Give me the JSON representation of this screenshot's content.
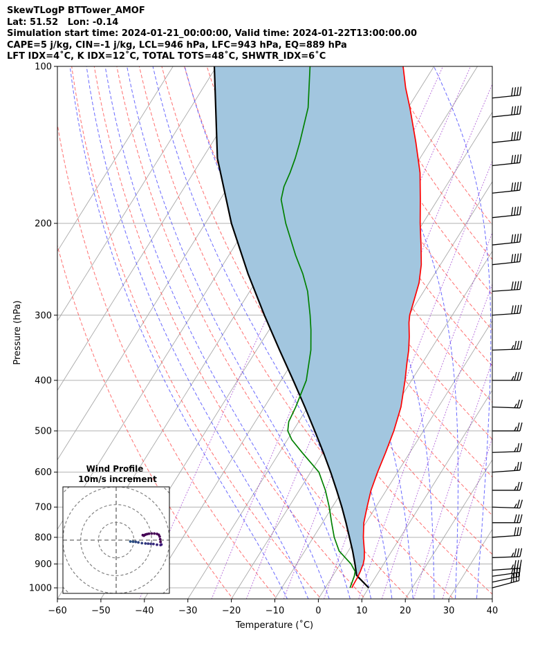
{
  "header": {
    "line1": "SkewTLogP BTTower_AMOF",
    "line2": "Lat: 51.52   Lon: -0.14",
    "line3": "Simulation start time: 2024-01-21_00:00:00, Valid time: 2024-01-22T13:00:00.00",
    "line4": "CAPE=5 j/kg, CIN=-1 j/kg, LCL=946 hPa, LFC=943 hPa, EQ=889 hPa",
    "line5": "LFT IDX=4˚C, K IDX=12˚C, TOTAL TOTS=48˚C, SHWTR_IDX=6˚C"
  },
  "chart_data": [
    {
      "type": "line",
      "chart": "skew-t log-p",
      "xlabel": "Temperature (˚C)",
      "ylabel": "Pressure (hPa)",
      "xlim": [
        -60,
        40
      ],
      "ylim": [
        1050,
        100
      ],
      "yscale": "log",
      "skew_deg_per_decade": 75,
      "x_ticks": [
        -60,
        -50,
        -40,
        -30,
        -20,
        -10,
        0,
        10,
        20,
        30,
        40
      ],
      "y_ticks": [
        1000,
        900,
        800,
        700,
        600,
        500,
        400,
        300,
        200,
        100
      ],
      "grid": true,
      "isotherms": [
        -110,
        -100,
        -90,
        -80,
        -70,
        -60,
        -50,
        -40,
        -30,
        -20,
        -10,
        0,
        10,
        20,
        30,
        40
      ],
      "dry_adiabats_K": [
        250,
        260,
        270,
        280,
        290,
        300,
        310,
        320,
        330,
        340,
        350,
        360,
        370,
        380,
        390,
        400,
        410
      ],
      "moist_adiabats_C": [
        -10,
        -5,
        0,
        5,
        10,
        15,
        20,
        25,
        30,
        35,
        40
      ],
      "mixing_ratio_gkg": [
        0.1,
        0.5,
        1,
        2,
        4,
        7,
        10,
        16,
        24
      ],
      "series": [
        {
          "role": "temperature",
          "color": "#ff0000",
          "points": [
            [
              1000,
              6.1
            ],
            [
              980,
              6.0
            ],
            [
              950,
              5.9
            ],
            [
              930,
              5.7
            ],
            [
              900,
              5.3
            ],
            [
              880,
              4.8
            ],
            [
              850,
              3.7
            ],
            [
              800,
              1.5
            ],
            [
              750,
              -0.5
            ],
            [
              700,
              -2.0
            ],
            [
              650,
              -3.5
            ],
            [
              600,
              -4.6
            ],
            [
              550,
              -5.6
            ],
            [
              500,
              -6.8
            ],
            [
              450,
              -8.6
            ],
            [
              400,
              -11.5
            ],
            [
              370,
              -13.6
            ],
            [
              350,
              -15.0
            ],
            [
              330,
              -16.8
            ],
            [
              310,
              -18.9
            ],
            [
              300,
              -19.8
            ],
            [
              280,
              -21.0
            ],
            [
              260,
              -22.3
            ],
            [
              240,
              -24.4
            ],
            [
              220,
              -27.3
            ],
            [
              200,
              -30.6
            ],
            [
              180,
              -34.0
            ],
            [
              160,
              -37.9
            ],
            [
              140,
              -43.2
            ],
            [
              120,
              -49.6
            ],
            [
              110,
              -53.4
            ],
            [
              100,
              -57.1
            ]
          ]
        },
        {
          "role": "dewpoint",
          "color": "#008000",
          "points": [
            [
              1000,
              5.7
            ],
            [
              950,
              5.0
            ],
            [
              930,
              4.5
            ],
            [
              900,
              2.5
            ],
            [
              880,
              0.7
            ],
            [
              850,
              -2.1
            ],
            [
              800,
              -5.2
            ],
            [
              750,
              -7.9
            ],
            [
              700,
              -10.7
            ],
            [
              650,
              -14.0
            ],
            [
              600,
              -18.1
            ],
            [
              550,
              -24.8
            ],
            [
              520,
              -29.0
            ],
            [
              500,
              -31.2
            ],
            [
              480,
              -32.3
            ],
            [
              450,
              -32.8
            ],
            [
              400,
              -34.2
            ],
            [
              350,
              -37.5
            ],
            [
              320,
              -40.4
            ],
            [
              300,
              -42.7
            ],
            [
              270,
              -46.7
            ],
            [
              250,
              -50.3
            ],
            [
              230,
              -54.7
            ],
            [
              200,
              -61.5
            ],
            [
              180,
              -66.0
            ],
            [
              170,
              -67.2
            ],
            [
              160,
              -67.8
            ],
            [
              150,
              -68.7
            ],
            [
              140,
              -69.9
            ],
            [
              120,
              -73.0
            ],
            [
              100,
              -78.5
            ]
          ]
        },
        {
          "role": "parcel",
          "color": "#000000",
          "points": [
            [
              1000,
              10.0
            ],
            [
              960,
              6.6
            ],
            [
              946,
              5.4
            ],
            [
              900,
              3.4
            ],
            [
              850,
              1.0
            ],
            [
              800,
              -1.7
            ],
            [
              750,
              -4.6
            ],
            [
              700,
              -7.8
            ],
            [
              650,
              -11.4
            ],
            [
              600,
              -15.4
            ],
            [
              550,
              -19.9
            ],
            [
              500,
              -25.0
            ],
            [
              450,
              -30.7
            ],
            [
              400,
              -37.2
            ],
            [
              350,
              -44.7
            ],
            [
              300,
              -53.2
            ],
            [
              250,
              -62.9
            ],
            [
              200,
              -74.0
            ],
            [
              150,
              -86.6
            ],
            [
              100,
              -100.5
            ]
          ]
        }
      ],
      "wind_barbs": [
        {
          "p": 1000,
          "speed_kt": 35,
          "dir_deg": 255
        },
        {
          "p": 975,
          "speed_kt": 35,
          "dir_deg": 258
        },
        {
          "p": 950,
          "speed_kt": 35,
          "dir_deg": 262
        },
        {
          "p": 925,
          "speed_kt": 35,
          "dir_deg": 266
        },
        {
          "p": 875,
          "speed_kt": 35,
          "dir_deg": 268
        },
        {
          "p": 800,
          "speed_kt": 30,
          "dir_deg": 266
        },
        {
          "p": 750,
          "speed_kt": 30,
          "dir_deg": 270
        },
        {
          "p": 700,
          "speed_kt": 25,
          "dir_deg": 272
        },
        {
          "p": 650,
          "speed_kt": 25,
          "dir_deg": 270
        },
        {
          "p": 600,
          "speed_kt": 25,
          "dir_deg": 266
        },
        {
          "p": 550,
          "speed_kt": 25,
          "dir_deg": 268
        },
        {
          "p": 500,
          "speed_kt": 25,
          "dir_deg": 270
        },
        {
          "p": 450,
          "speed_kt": 25,
          "dir_deg": 272
        },
        {
          "p": 400,
          "speed_kt": 35,
          "dir_deg": 270
        },
        {
          "p": 350,
          "speed_kt": 35,
          "dir_deg": 268
        },
        {
          "p": 300,
          "speed_kt": 40,
          "dir_deg": 266
        },
        {
          "p": 270,
          "speed_kt": 40,
          "dir_deg": 266
        },
        {
          "p": 240,
          "speed_kt": 40,
          "dir_deg": 264
        },
        {
          "p": 220,
          "speed_kt": 40,
          "dir_deg": 264
        },
        {
          "p": 195,
          "speed_kt": 40,
          "dir_deg": 264
        },
        {
          "p": 175,
          "speed_kt": 40,
          "dir_deg": 264
        },
        {
          "p": 155,
          "speed_kt": 40,
          "dir_deg": 264
        },
        {
          "p": 140,
          "speed_kt": 40,
          "dir_deg": 264
        },
        {
          "p": 125,
          "speed_kt": 40,
          "dir_deg": 264
        },
        {
          "p": 115,
          "speed_kt": 40,
          "dir_deg": 264
        }
      ]
    },
    {
      "type": "scatter",
      "chart": "hodograph",
      "title": "Wind Profile",
      "subtitle": "10m/s increment",
      "rings_ms": [
        10,
        20,
        30,
        40,
        50
      ],
      "xlim": [
        -30,
        30
      ],
      "ylim": [
        -30,
        30
      ],
      "points_uv": [
        [
          8.0,
          -0.8
        ],
        [
          9.5,
          -0.9
        ],
        [
          11.0,
          -1.0
        ],
        [
          12.5,
          -1.3
        ],
        [
          14.5,
          -1.7
        ],
        [
          16.5,
          -1.9
        ],
        [
          18.0,
          -2.0
        ],
        [
          19.5,
          -2.1
        ],
        [
          21.0,
          -2.2
        ],
        [
          23.0,
          -2.6
        ],
        [
          25.0,
          -2.8
        ],
        [
          25.5,
          -2.5
        ],
        [
          25.0,
          -1.0
        ],
        [
          24.8,
          0.5
        ],
        [
          24.5,
          2.0
        ],
        [
          24.0,
          3.0
        ],
        [
          23.0,
          3.5
        ],
        [
          21.5,
          3.7
        ],
        [
          20.0,
          3.7
        ],
        [
          18.5,
          3.6
        ],
        [
          17.5,
          3.4
        ],
        [
          16.8,
          3.2
        ],
        [
          16.3,
          3.0
        ],
        [
          15.6,
          2.5
        ],
        [
          15.0,
          2.8
        ]
      ]
    }
  ]
}
